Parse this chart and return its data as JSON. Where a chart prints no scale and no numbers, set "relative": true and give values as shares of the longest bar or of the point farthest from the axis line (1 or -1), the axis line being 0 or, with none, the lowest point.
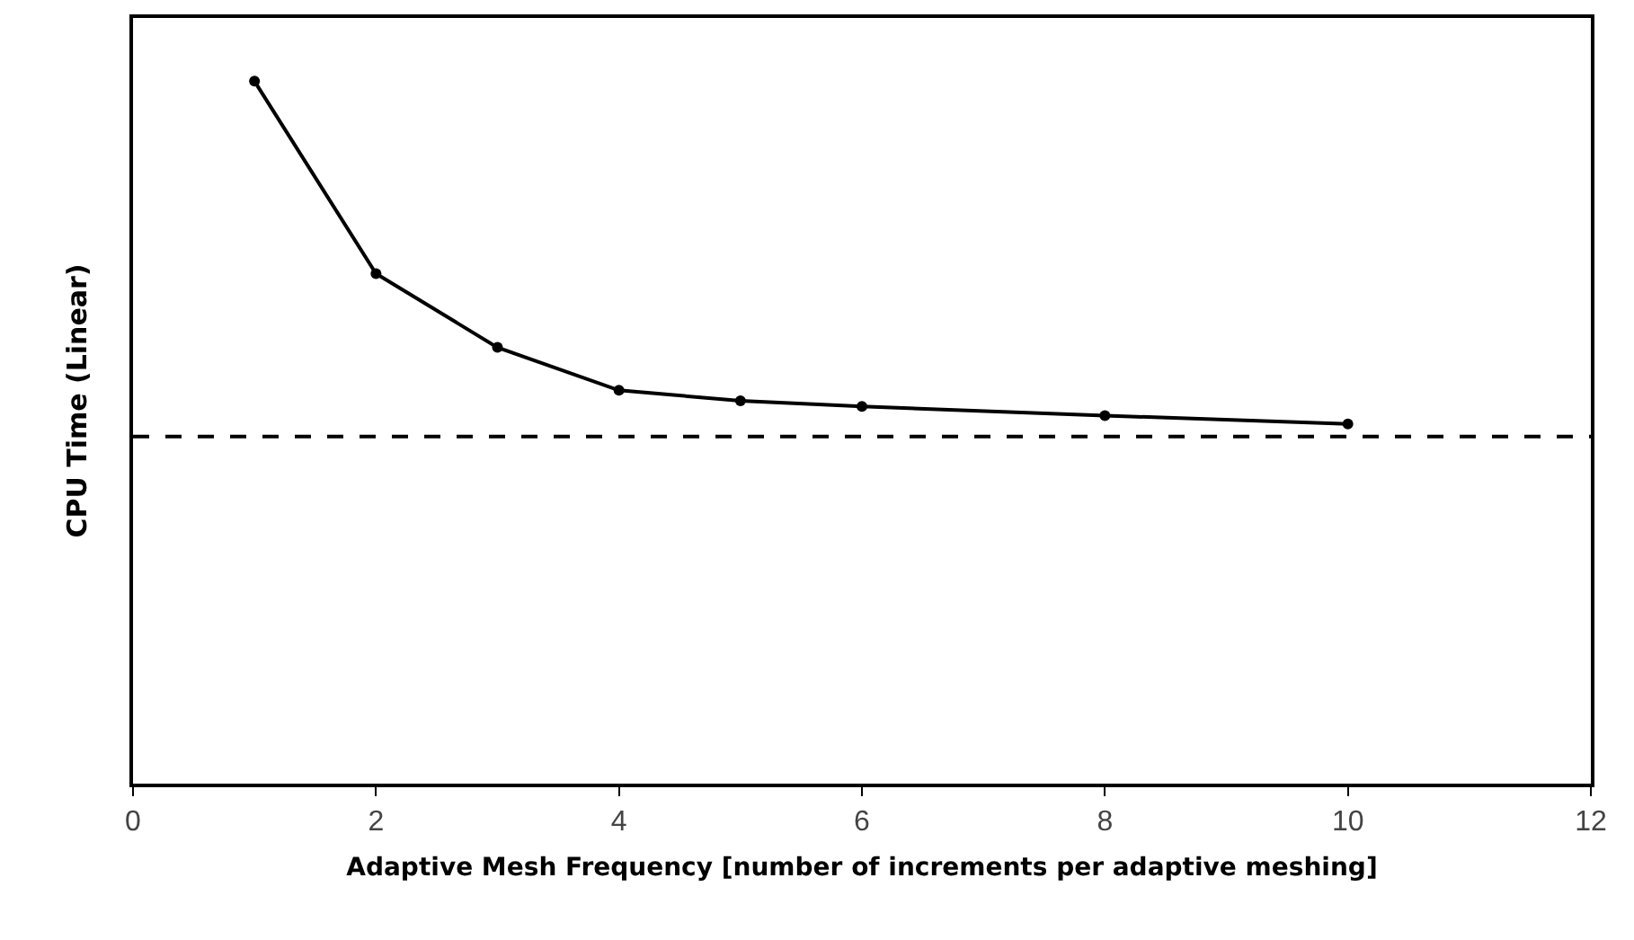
{
  "chart_data": {
    "type": "line",
    "xlabel": "Adaptive Mesh Frequency [number of increments per adaptive meshing]",
    "ylabel": "CPU Time (Linear)",
    "relative": true,
    "x": [
      1,
      2,
      3,
      4,
      5,
      6,
      8,
      10
    ],
    "series": [
      {
        "color": "#000000",
        "values": [
          1,
          0.726,
          0.621,
          0.56,
          0.545,
          0.537,
          0.524,
          0.512
        ]
      }
    ],
    "xlim": [
      0,
      12
    ],
    "xticks": [
      0,
      2,
      4,
      6,
      8,
      10,
      12
    ],
    "grid": false,
    "marker": "circle",
    "line_style": "solid",
    "ref_lines": [
      {
        "axis": "y",
        "value": 0.494,
        "color": "#000000",
        "line_style": "dashed"
      }
    ]
  }
}
